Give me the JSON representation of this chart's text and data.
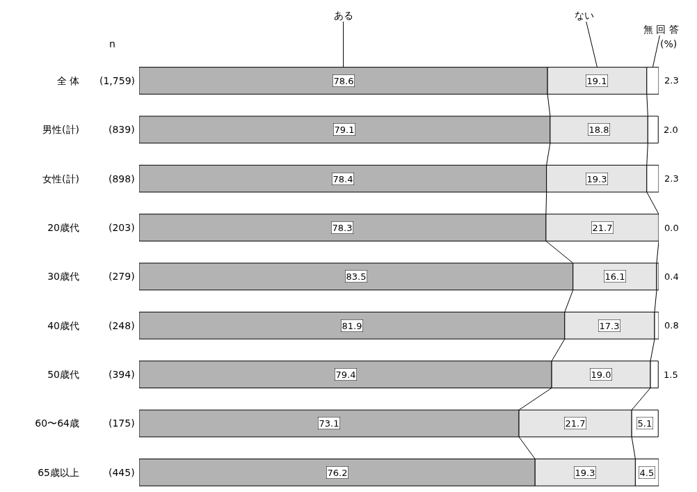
{
  "chart_data": {
    "type": "bar",
    "orientation": "horizontal",
    "stacked": true,
    "legend": false,
    "tick_labels": "y",
    "categories": [
      "全 体",
      "男性(計)",
      "女性(計)",
      "20歳代",
      "30歳代",
      "40歳代",
      "50歳代",
      "60〜64歳",
      "65歳以上"
    ],
    "series": [
      {
        "name": "ある",
        "color": "#b3b3b3",
        "values": [
          78.6,
          79.1,
          78.4,
          78.3,
          83.5,
          81.9,
          79.4,
          73.1,
          76.2
        ],
        "value_labels": [
          "78.6",
          "79.1",
          "78.4",
          "78.3",
          "83.5",
          "81.9",
          "79.4",
          "73.1",
          "76.2"
        ]
      },
      {
        "name": "ない",
        "color": "#e6e6e6",
        "values": [
          19.1,
          18.8,
          19.3,
          21.7,
          16.1,
          17.3,
          19.0,
          21.7,
          19.3
        ],
        "value_labels": [
          "19.1",
          "18.8",
          "19.3",
          "21.7",
          "16.1",
          "17.3",
          "19.0",
          "21.7",
          "19.3"
        ]
      },
      {
        "name": "無 回 答",
        "color": "#ffffff",
        "values": [
          2.3,
          2.0,
          2.3,
          0.0,
          0.4,
          0.8,
          1.5,
          5.1,
          4.5
        ],
        "value_labels": [
          "2.3",
          "2.0",
          "2.3",
          "0.0",
          "0.4",
          "0.8",
          "1.5",
          "5.1",
          "4.5"
        ]
      }
    ],
    "annotations": [
      "n",
      "(%)",
      "(1,759)",
      "(839)",
      "(898)",
      "(203)",
      "(279)",
      "(248)",
      "(394)",
      "(175)",
      "(445)"
    ]
  }
}
